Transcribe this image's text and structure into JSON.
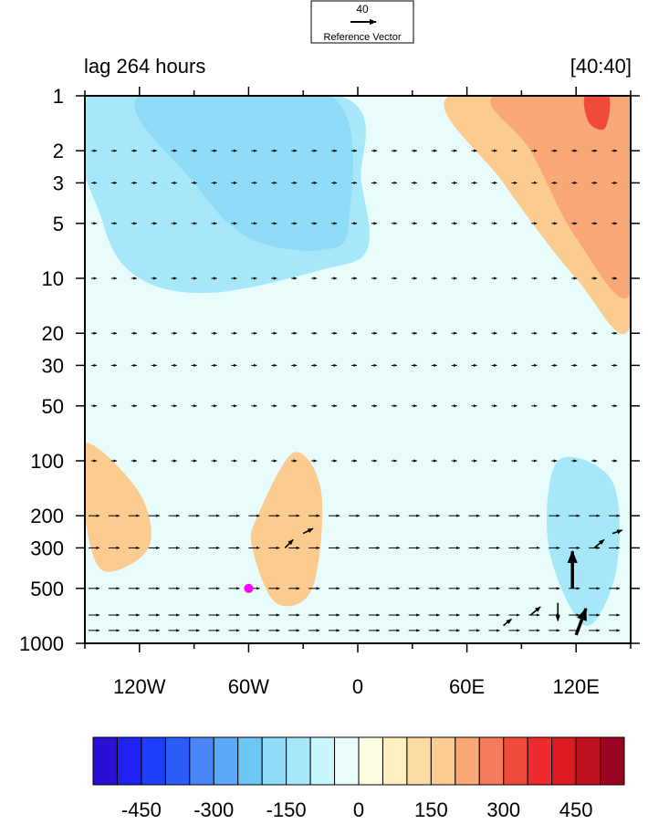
{
  "chart_data": {
    "type": "heatmap",
    "subtitle_left": "lag 264 hours",
    "subtitle_right": "[40:40]",
    "reference_vector": {
      "value": "40",
      "label": "Reference Vector"
    },
    "x_ticks": [
      "120W",
      "60W",
      "0",
      "60E",
      "120E"
    ],
    "x_tick_values": [
      -120,
      -60,
      0,
      60,
      120
    ],
    "xlim": [
      -150,
      150
    ],
    "y_ticks": [
      "1",
      "2",
      "3",
      "5",
      "10",
      "20",
      "30",
      "50",
      "100",
      "200",
      "300",
      "500",
      "1000"
    ],
    "y_tick_values": [
      1,
      2,
      3,
      5,
      10,
      20,
      30,
      50,
      100,
      200,
      300,
      500,
      1000
    ],
    "ylim": [
      1,
      1000
    ],
    "y_scale": "log",
    "y_inverted": true,
    "colorbar": {
      "labels": [
        "-450",
        "-300",
        "-150",
        "0",
        "150",
        "300",
        "450"
      ],
      "label_values": [
        -450,
        -300,
        -150,
        0,
        150,
        300,
        450
      ],
      "levels": [
        -550,
        -500,
        -450,
        -400,
        -350,
        -300,
        -250,
        -200,
        -150,
        -100,
        -50,
        0,
        50,
        100,
        150,
        200,
        250,
        300,
        350,
        400,
        450,
        500,
        550
      ],
      "colors": [
        "#2a0fd4",
        "#1f22f0",
        "#1e3ff8",
        "#2a5cf8",
        "#4a86f8",
        "#5aa8f8",
        "#6cc6f6",
        "#8edcf8",
        "#a6e8fa",
        "#c8f6fc",
        "#e8fcfc",
        "#fefce0",
        "#fdefc0",
        "#fcdca4",
        "#fbcb90",
        "#f8a874",
        "#f37a5a",
        "#ef4a3a",
        "#ed2a2c",
        "#dc1a22",
        "#bf1020",
        "#9a0420"
      ]
    },
    "marker": {
      "lon": -60,
      "pressure": 500,
      "color": "#ff00ff"
    },
    "contour_regions": [
      {
        "value": -150,
        "desc": "upper-left blue lobe",
        "poly": [
          [
            -148,
            1
          ],
          [
            -10,
            1
          ],
          [
            2,
            3
          ],
          [
            5,
            7
          ],
          [
            -20,
            9
          ],
          [
            -80,
            12
          ],
          [
            -120,
            10
          ],
          [
            -140,
            5
          ]
        ]
      },
      {
        "value": -200,
        "desc": "upper blue core",
        "poly": [
          [
            -120,
            1
          ],
          [
            -15,
            1
          ],
          [
            -5,
            5
          ],
          [
            -20,
            7
          ],
          [
            -60,
            6
          ],
          [
            -90,
            3
          ]
        ]
      },
      {
        "value": 150,
        "desc": "upper-right orange",
        "poly": [
          [
            50,
            1
          ],
          [
            150,
            1
          ],
          [
            150,
            18
          ],
          [
            120,
            10
          ],
          [
            80,
            3
          ]
        ]
      },
      {
        "value": 200,
        "desc": "upper-right orange core",
        "poly": [
          [
            75,
            1
          ],
          [
            150,
            1
          ],
          [
            150,
            12
          ],
          [
            120,
            6
          ],
          [
            95,
            2
          ]
        ]
      },
      {
        "value": 300,
        "desc": "orange peak",
        "poly": [
          [
            125,
            1
          ],
          [
            138,
            1
          ],
          [
            136,
            1.5
          ],
          [
            127,
            1.4
          ]
        ]
      },
      {
        "value": -150,
        "desc": "lower-right blue",
        "poly": [
          [
            110,
            100
          ],
          [
            140,
            130
          ],
          [
            142,
            400
          ],
          [
            125,
            800
          ],
          [
            105,
            300
          ]
        ]
      },
      {
        "value": 150,
        "desc": "mid-left orange",
        "poly": [
          [
            -55,
            200
          ],
          [
            -35,
            90
          ],
          [
            -20,
            150
          ],
          [
            -25,
            500
          ],
          [
            -45,
            600
          ],
          [
            -58,
            300
          ]
        ]
      },
      {
        "value": 150,
        "desc": "far-left orange",
        "poly": [
          [
            -150,
            80
          ],
          [
            -120,
            150
          ],
          [
            -115,
            300
          ],
          [
            -140,
            400
          ],
          [
            -150,
            200
          ]
        ]
      }
    ],
    "vectors": [
      {
        "lon": 118,
        "pressure": 500,
        "u": 0,
        "v": 45
      },
      {
        "lon": 120,
        "pressure": 900,
        "u": 12,
        "v": 32
      },
      {
        "lon": 110,
        "pressure": 600,
        "u": 0,
        "v": -22
      },
      {
        "lon": -30,
        "pressure": 250,
        "u": 12,
        "v": 6
      },
      {
        "lon": -40,
        "pressure": 300,
        "u": 10,
        "v": 10
      },
      {
        "lon": 80,
        "pressure": 800,
        "u": 10,
        "v": 8
      },
      {
        "lon": 95,
        "pressure": 700,
        "u": 12,
        "v": 10
      },
      {
        "lon": 130,
        "pressure": 300,
        "u": 12,
        "v": 10
      },
      {
        "lon": 140,
        "pressure": 250,
        "u": 12,
        "v": 4
      }
    ]
  }
}
